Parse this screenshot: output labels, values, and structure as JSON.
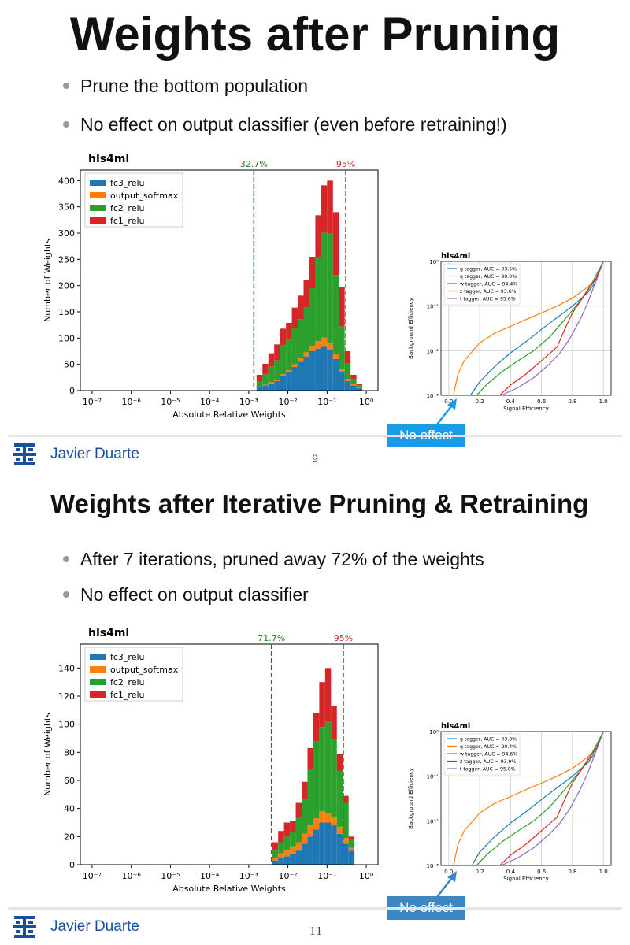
{
  "slide1": {
    "title": "Weights after Pruning",
    "bullets": [
      "Prune the bottom population",
      "No effect on output classifier (even before retraining!)"
    ],
    "callout": "No effect",
    "footer": {
      "author": "Javier Duarte",
      "page": "9"
    }
  },
  "slide2": {
    "title": "Weights after Iterative Pruning & Retraining",
    "bullets": [
      "After 7 iterations, pruned away 72% of the weights",
      "No effect on output classifier"
    ],
    "callout": "No effect",
    "footer": {
      "author": "Javier Duarte",
      "page": "11"
    }
  },
  "colors": {
    "fc3_relu": "#1f77b4",
    "output_softmax": "#ff7f0e",
    "fc2_relu": "#2ca02c",
    "fc1_relu": "#d62728",
    "green_line": "#1b7d1b",
    "red_line": "#c0392b",
    "bullet": "#999999",
    "brand": "#1a4fa0",
    "callout": "#1a9be8"
  },
  "chart_data": [
    {
      "type": "bar",
      "subtype": "stacked-histogram",
      "title": "hls4ml",
      "xlabel": "Absolute Relative Weights",
      "ylabel": "Number of Weights",
      "xscale": "log",
      "xlim": [
        1e-07,
        1
      ],
      "ylim": [
        0,
        420
      ],
      "yticks": [
        "0",
        "50",
        "100",
        "150",
        "200",
        "250",
        "300",
        "350",
        "400"
      ],
      "xticks": [
        "10⁻⁷",
        "10⁻⁶",
        "10⁻⁵",
        "10⁻⁴",
        "10⁻³",
        "10⁻²",
        "10⁻¹",
        "10⁰"
      ],
      "legend_position": "top-left",
      "legend": [
        "fc3_relu",
        "output_softmax",
        "fc2_relu",
        "fc1_relu"
      ],
      "vlines": [
        {
          "x": 0.00135,
          "label": "32.7%",
          "color": "green"
        },
        {
          "x": 0.3,
          "label": "95%",
          "color": "red"
        }
      ],
      "bin_log_edges": [
        -2.8,
        -2.65,
        -2.5,
        -2.35,
        -2.2,
        -2.05,
        -1.9,
        -1.75,
        -1.6,
        -1.45,
        -1.3,
        -1.15,
        -1.0,
        -0.85,
        -0.7,
        -0.55,
        -0.4,
        -0.25,
        -0.1
      ],
      "series": [
        {
          "name": "fc3_relu",
          "values": [
            8,
            10,
            14,
            18,
            28,
            35,
            45,
            55,
            65,
            75,
            80,
            85,
            78,
            60,
            35,
            18,
            10,
            5
          ]
        },
        {
          "name": "output_softmax",
          "values": [
            0,
            1,
            2,
            2,
            3,
            4,
            5,
            6,
            8,
            10,
            14,
            16,
            12,
            10,
            7,
            4,
            2,
            1
          ]
        },
        {
          "name": "fc2_relu",
          "values": [
            10,
            20,
            30,
            38,
            55,
            60,
            70,
            75,
            85,
            110,
            160,
            200,
            210,
            150,
            80,
            30,
            10,
            4
          ]
        },
        {
          "name": "fc1_relu",
          "values": [
            12,
            20,
            25,
            30,
            32,
            30,
            38,
            45,
            52,
            60,
            80,
            90,
            100,
            120,
            75,
            23,
            8,
            3
          ]
        }
      ]
    },
    {
      "type": "line",
      "title": "hls4ml",
      "xlabel": "Signal Efficiency",
      "ylabel": "Background Efficiency",
      "yscale": "log",
      "xlim": [
        -0.05,
        1.05
      ],
      "ylim": [
        0.001,
        1
      ],
      "xticks": [
        "0.0",
        "0.2",
        "0.4",
        "0.6",
        "0.8",
        "1.0"
      ],
      "yticks": [
        "10⁻³",
        "10⁻²",
        "10⁻¹",
        "10⁰"
      ],
      "grid": true,
      "legend_position": "top-left",
      "series": [
        {
          "name": "g tagger, AUC = 93.5%",
          "color": "#1f77b4",
          "x": [
            0.14,
            0.2,
            0.3,
            0.4,
            0.5,
            0.6,
            0.7,
            0.8,
            0.9,
            0.95,
            1.0
          ],
          "y": [
            0.001,
            0.002,
            0.0045,
            0.009,
            0.016,
            0.03,
            0.055,
            0.1,
            0.2,
            0.35,
            1.0
          ]
        },
        {
          "name": "q tagger, AUC = 90.0%",
          "color": "#ff7f0e",
          "x": [
            0.03,
            0.06,
            0.1,
            0.2,
            0.3,
            0.4,
            0.5,
            0.6,
            0.7,
            0.8,
            0.9,
            0.95,
            1.0
          ],
          "y": [
            0.001,
            0.003,
            0.006,
            0.015,
            0.025,
            0.035,
            0.05,
            0.07,
            0.1,
            0.15,
            0.27,
            0.4,
            1.0
          ]
        },
        {
          "name": "w tagger, AUC = 94.4%",
          "color": "#2ca02c",
          "x": [
            0.18,
            0.25,
            0.35,
            0.45,
            0.55,
            0.65,
            0.75,
            0.85,
            0.92,
            1.0
          ],
          "y": [
            0.001,
            0.0018,
            0.0035,
            0.006,
            0.01,
            0.02,
            0.05,
            0.13,
            0.3,
            1.0
          ]
        },
        {
          "name": "z tagger, AUC = 93.6%",
          "color": "#d62728",
          "x": [
            0.33,
            0.4,
            0.5,
            0.6,
            0.7,
            0.75,
            0.8,
            0.88,
            0.95,
            1.0
          ],
          "y": [
            0.001,
            0.0017,
            0.003,
            0.006,
            0.012,
            0.03,
            0.07,
            0.18,
            0.4,
            1.0
          ]
        },
        {
          "name": "t tagger, AUC = 95.6%",
          "color": "#9467bd",
          "x": [
            0.34,
            0.45,
            0.55,
            0.65,
            0.72,
            0.78,
            0.85,
            0.9,
            0.95,
            1.0
          ],
          "y": [
            0.001,
            0.0015,
            0.0025,
            0.005,
            0.009,
            0.018,
            0.05,
            0.12,
            0.35,
            1.0
          ]
        }
      ]
    },
    {
      "type": "bar",
      "subtype": "stacked-histogram",
      "title": "hls4ml",
      "xlabel": "Absolute Relative Weights",
      "ylabel": "Number of Weights",
      "xscale": "log",
      "xlim": [
        1e-07,
        1
      ],
      "ylim": [
        0,
        157
      ],
      "yticks": [
        "0",
        "20",
        "40",
        "60",
        "80",
        "100",
        "120",
        "140"
      ],
      "xticks": [
        "10⁻⁷",
        "10⁻⁶",
        "10⁻⁵",
        "10⁻⁴",
        "10⁻³",
        "10⁻²",
        "10⁻¹",
        "10⁰"
      ],
      "legend_position": "top-left",
      "legend": [
        "fc3_relu",
        "output_softmax",
        "fc2_relu",
        "fc1_relu"
      ],
      "vlines": [
        {
          "x": 0.0038,
          "label": "71.7%",
          "color": "green"
        },
        {
          "x": 0.26,
          "label": "95%",
          "color": "red"
        }
      ],
      "bin_log_edges": [
        -2.4,
        -2.25,
        -2.1,
        -1.95,
        -1.8,
        -1.65,
        -1.5,
        -1.35,
        -1.2,
        -1.05,
        -0.9,
        -0.75,
        -0.6,
        -0.45,
        -0.3
      ],
      "series": [
        {
          "name": "fc3_relu",
          "values": [
            3,
            5,
            6,
            8,
            10,
            15,
            20,
            25,
            30,
            30,
            28,
            22,
            15,
            10
          ]
        },
        {
          "name": "output_softmax",
          "values": [
            2,
            3,
            4,
            5,
            6,
            7,
            8,
            8,
            8,
            7,
            6,
            5,
            4,
            2
          ]
        },
        {
          "name": "fc2_relu",
          "values": [
            5,
            8,
            10,
            10,
            18,
            25,
            40,
            55,
            60,
            65,
            55,
            40,
            25,
            6
          ]
        },
        {
          "name": "fc1_relu",
          "values": [
            6,
            8,
            10,
            8,
            10,
            12,
            15,
            20,
            32,
            38,
            24,
            12,
            5,
            2
          ]
        }
      ]
    },
    {
      "type": "line",
      "title": "hls4ml",
      "xlabel": "Signal Efficiency",
      "ylabel": "Background Efficiency",
      "yscale": "log",
      "xlim": [
        -0.05,
        1.05
      ],
      "ylim": [
        0.001,
        1
      ],
      "xticks": [
        "0.0",
        "0.2",
        "0.4",
        "0.6",
        "0.8",
        "1.0"
      ],
      "yticks": [
        "10⁻³",
        "10⁻²",
        "10⁻¹",
        "10⁰"
      ],
      "grid": true,
      "legend_position": "top-left",
      "series": [
        {
          "name": "g tagger, AUC = 93.8%",
          "color": "#1f77b4",
          "x": [
            0.15,
            0.2,
            0.3,
            0.4,
            0.5,
            0.6,
            0.7,
            0.8,
            0.9,
            0.95,
            1.0
          ],
          "y": [
            0.001,
            0.002,
            0.0045,
            0.009,
            0.016,
            0.03,
            0.055,
            0.1,
            0.2,
            0.35,
            1.0
          ]
        },
        {
          "name": "q tagger, AUC = 90.4%",
          "color": "#ff7f0e",
          "x": [
            0.03,
            0.06,
            0.1,
            0.2,
            0.3,
            0.4,
            0.5,
            0.6,
            0.7,
            0.8,
            0.9,
            0.95,
            1.0
          ],
          "y": [
            0.001,
            0.003,
            0.006,
            0.015,
            0.025,
            0.035,
            0.05,
            0.07,
            0.1,
            0.15,
            0.27,
            0.4,
            1.0
          ]
        },
        {
          "name": "w tagger, AUC = 94.6%",
          "color": "#2ca02c",
          "x": [
            0.18,
            0.25,
            0.35,
            0.45,
            0.55,
            0.65,
            0.75,
            0.85,
            0.92,
            1.0
          ],
          "y": [
            0.001,
            0.0018,
            0.0035,
            0.006,
            0.01,
            0.02,
            0.05,
            0.13,
            0.3,
            1.0
          ]
        },
        {
          "name": "z tagger, AUC = 93.9%",
          "color": "#d62728",
          "x": [
            0.33,
            0.4,
            0.5,
            0.6,
            0.7,
            0.75,
            0.8,
            0.88,
            0.95,
            1.0
          ],
          "y": [
            0.001,
            0.0017,
            0.003,
            0.006,
            0.012,
            0.03,
            0.07,
            0.18,
            0.4,
            1.0
          ]
        },
        {
          "name": "t tagger, AUC = 95.8%",
          "color": "#9467bd",
          "x": [
            0.34,
            0.45,
            0.55,
            0.65,
            0.72,
            0.78,
            0.85,
            0.9,
            0.95,
            1.0
          ],
          "y": [
            0.001,
            0.0015,
            0.0025,
            0.005,
            0.009,
            0.018,
            0.05,
            0.12,
            0.35,
            1.0
          ]
        }
      ]
    }
  ]
}
